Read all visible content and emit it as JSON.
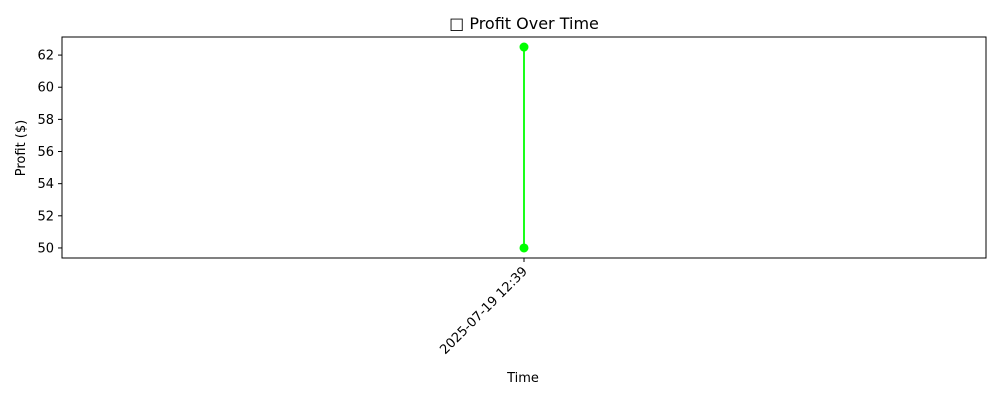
{
  "chart_data": {
    "type": "line",
    "title": "□ Profit Over Time",
    "xlabel": "Time",
    "ylabel": "Profit ($)",
    "x": [
      "2025-07-19 12:39",
      "2025-07-19 12:39"
    ],
    "series": [
      {
        "values": [
          50.0,
          62.5
        ],
        "color": "#00ff00",
        "marker": "circle"
      }
    ],
    "xticks": [
      "2025-07-19 12:39"
    ],
    "yticks": [
      "50",
      "52",
      "54",
      "56",
      "58",
      "60",
      "62"
    ],
    "ylim": [
      49.375,
      63.125
    ],
    "grid": false,
    "legend": "none"
  }
}
